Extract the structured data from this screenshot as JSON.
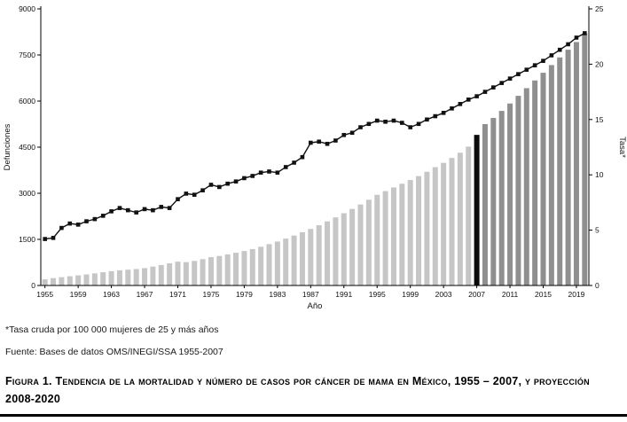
{
  "chart_data": {
    "type": "combo-bar-line",
    "title": "",
    "xlabel": "Año",
    "x": [
      1955,
      1956,
      1957,
      1958,
      1959,
      1960,
      1961,
      1962,
      1963,
      1964,
      1965,
      1966,
      1967,
      1968,
      1969,
      1970,
      1971,
      1972,
      1973,
      1974,
      1975,
      1976,
      1977,
      1978,
      1979,
      1980,
      1981,
      1982,
      1983,
      1984,
      1985,
      1986,
      1987,
      1988,
      1989,
      1990,
      1991,
      1992,
      1993,
      1994,
      1995,
      1996,
      1997,
      1998,
      1999,
      2000,
      2001,
      2002,
      2003,
      2004,
      2005,
      2006,
      2007,
      2008,
      2009,
      2010,
      2011,
      2012,
      2013,
      2014,
      2015,
      2016,
      2017,
      2018,
      2019,
      2020
    ],
    "x_tick_interval": 4,
    "left_axis": {
      "label": "Defunciones",
      "min": 0,
      "max": 9000,
      "step": 1500
    },
    "right_axis": {
      "label": "Tasa*",
      "min": 0,
      "max": 25,
      "step": 5
    },
    "colors": {
      "historical": "#c6c6c6",
      "projection": "#8f8f8f",
      "highlight": "#0b0b0b",
      "line": "#111111",
      "highlight_year": 2007,
      "projection_start": 2008
    },
    "series": [
      {
        "name": "Defunciones (número de casos)",
        "type": "bar",
        "axis": "left",
        "values": [
          200,
          240,
          270,
          300,
          330,
          360,
          395,
          430,
          465,
          495,
          515,
          535,
          565,
          615,
          665,
          720,
          775,
          760,
          800,
          855,
          920,
          960,
          1010,
          1065,
          1120,
          1185,
          1260,
          1345,
          1430,
          1525,
          1625,
          1730,
          1840,
          1960,
          2085,
          2215,
          2350,
          2490,
          2635,
          2790,
          2950,
          3070,
          3190,
          3310,
          3430,
          3560,
          3700,
          3850,
          3990,
          4150,
          4320,
          4520,
          4900,
          5250,
          5450,
          5680,
          5920,
          6170,
          6420,
          6670,
          6920,
          7170,
          7420,
          7670,
          7920,
          8200
        ]
      },
      {
        "name": "Tasa",
        "type": "line",
        "axis": "right",
        "values": [
          4.2,
          4.3,
          5.2,
          5.6,
          5.5,
          5.8,
          6.0,
          6.3,
          6.7,
          7.0,
          6.8,
          6.6,
          6.9,
          6.8,
          7.1,
          7.0,
          7.8,
          8.3,
          8.2,
          8.6,
          9.1,
          8.9,
          9.2,
          9.4,
          9.7,
          9.9,
          10.2,
          10.3,
          10.2,
          10.7,
          11.1,
          11.6,
          12.9,
          13.0,
          12.8,
          13.1,
          13.6,
          13.8,
          14.3,
          14.6,
          14.9,
          14.8,
          14.9,
          14.7,
          14.3,
          14.6,
          15.0,
          15.3,
          15.6,
          16.0,
          16.4,
          16.8,
          17.1,
          17.5,
          17.9,
          18.3,
          18.7,
          19.1,
          19.5,
          19.9,
          20.3,
          20.8,
          21.3,
          21.8,
          22.4,
          22.8
        ]
      }
    ]
  },
  "footnotes": {
    "rate": "*Tasa cruda por 100 000 mujeres de 25 y más años",
    "source": "Fuente: Bases de datos OMS/INEGI/SSA 1955-2007"
  },
  "caption": {
    "text": "Figura 1. Tendencia de la mortalidad y número de casos por cáncer de mama en México, 1955 – 2007, y proyección 2008-2020"
  }
}
